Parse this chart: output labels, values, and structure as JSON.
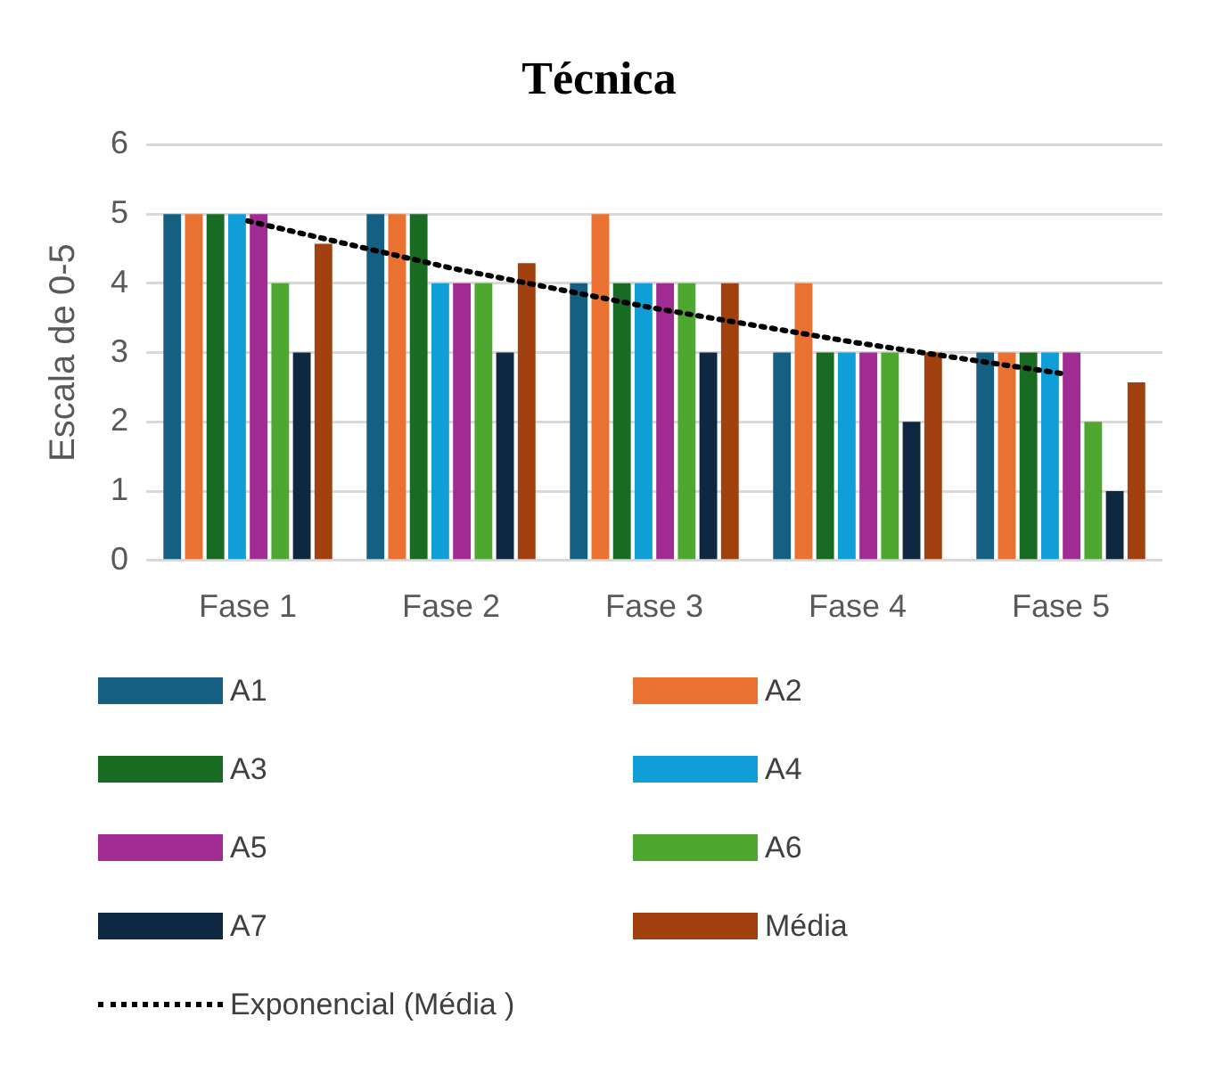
{
  "chart_data": {
    "type": "bar",
    "title": "Técnica",
    "ylabel": "Escala de 0-5",
    "categories": [
      "Fase 1",
      "Fase 2",
      "Fase 3",
      "Fase 4",
      "Fase 5"
    ],
    "series": [
      {
        "name": "A1",
        "color": "#156082",
        "values": [
          5,
          5,
          4,
          3,
          3
        ]
      },
      {
        "name": "A2",
        "color": "#e97132",
        "values": [
          5,
          5,
          5,
          4,
          3
        ]
      },
      {
        "name": "A3",
        "color": "#196b24",
        "values": [
          5,
          5,
          4,
          3,
          3
        ]
      },
      {
        "name": "A4",
        "color": "#0f9ed5",
        "values": [
          5,
          4,
          4,
          3,
          3
        ]
      },
      {
        "name": "A5",
        "color": "#a02b93",
        "values": [
          5,
          4,
          4,
          3,
          3
        ]
      },
      {
        "name": "A6",
        "color": "#4ea72e",
        "values": [
          4,
          4,
          4,
          3,
          2
        ]
      },
      {
        "name": "A7",
        "color": "#0e2841",
        "values": [
          3,
          3,
          3,
          2,
          1
        ]
      },
      {
        "name": "Média",
        "color": "#a0410f",
        "values": [
          4.57,
          4.29,
          4,
          3,
          2.57
        ]
      },
      {
        "name": "Exponencial (Média )",
        "type": "line",
        "color": "#000000",
        "line_style": "dotted",
        "marker": "none",
        "x": [
          "Fase 1",
          "Fase 2",
          "Fase 3",
          "Fase 4",
          "Fase 5"
        ],
        "values": [
          4.9,
          4.22,
          3.64,
          3.14,
          2.7
        ]
      }
    ],
    "ylim": [
      0,
      6
    ],
    "yticks": [
      0,
      1,
      2,
      3,
      4,
      5,
      6
    ],
    "grid": "y",
    "legend": "bottom"
  }
}
